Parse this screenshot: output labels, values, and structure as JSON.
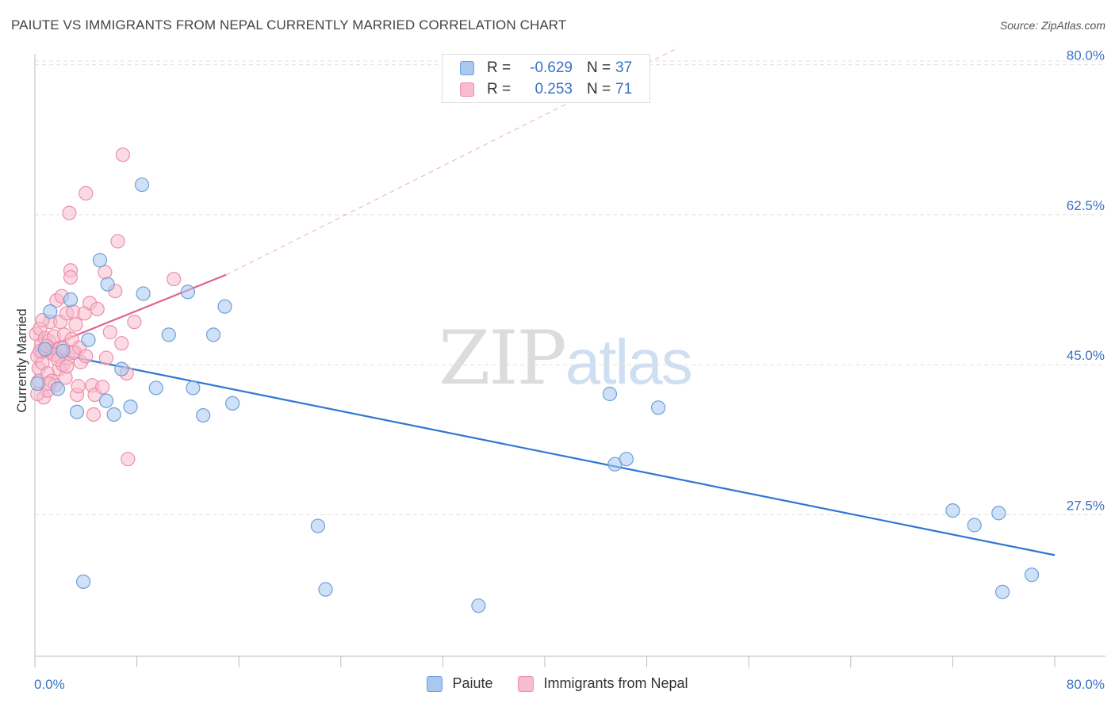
{
  "header": {
    "title": "PAIUTE VS IMMIGRANTS FROM NEPAL CURRENTLY MARRIED CORRELATION CHART",
    "source": "Source: ZipAtlas.com"
  },
  "watermark": {
    "zip": "ZIP",
    "atlas": "atlas"
  },
  "legend_top": {
    "rows": [
      {
        "r_label": "R =",
        "r_value": "-0.629",
        "n_label": "N =",
        "n_value": "37"
      },
      {
        "r_label": "R =",
        "r_value": "0.253",
        "n_label": "N =",
        "n_value": "71"
      }
    ]
  },
  "legend_bottom": {
    "items": [
      {
        "label": "Paiute"
      },
      {
        "label": "Immigrants from Nepal"
      }
    ]
  },
  "colors": {
    "paiute_fill": "#a8c8f0",
    "paiute_stroke": "#6f9fd8",
    "paiute_line": "#2f76d2",
    "nepal_fill": "#f7bccd",
    "nepal_stroke": "#ec8fab",
    "nepal_line": "#e3628d",
    "grid": "#e0e0e0",
    "axis_label": "#3a72c4"
  },
  "chart_data": {
    "type": "scatter",
    "title": "PAIUTE VS IMMIGRANTS FROM NEPAL CURRENTLY MARRIED CORRELATION CHART",
    "xlabel": "",
    "ylabel": "Currently Married",
    "xlim": [
      0,
      80
    ],
    "ylim": [
      11,
      82
    ],
    "x_tick_labels": [
      "0.0%",
      "80.0%"
    ],
    "y_ticks": [
      27.5,
      45.0,
      62.5,
      80.0
    ],
    "y_tick_labels": [
      "27.5%",
      "45.0%",
      "62.5%",
      "80.0%"
    ],
    "series": [
      {
        "name": "Paiute",
        "r": -0.629,
        "n": 37,
        "points": [
          [
            0.2,
            42.8
          ],
          [
            1.2,
            51.2
          ],
          [
            1.8,
            42.2
          ],
          [
            2.2,
            46.6
          ],
          [
            2.8,
            52.6
          ],
          [
            3.3,
            39.5
          ],
          [
            3.8,
            19.7
          ],
          [
            4.2,
            47.9
          ],
          [
            5.1,
            57.2
          ],
          [
            5.6,
            40.8
          ],
          [
            5.7,
            54.4
          ],
          [
            6.2,
            39.2
          ],
          [
            6.8,
            44.5
          ],
          [
            7.5,
            40.1
          ],
          [
            8.4,
            66.0
          ],
          [
            8.5,
            53.3
          ],
          [
            9.5,
            42.3
          ],
          [
            10.5,
            48.5
          ],
          [
            12.0,
            53.5
          ],
          [
            12.4,
            42.3
          ],
          [
            13.2,
            39.1
          ],
          [
            14.0,
            48.5
          ],
          [
            14.9,
            51.8
          ],
          [
            15.5,
            40.5
          ],
          [
            22.2,
            26.2
          ],
          [
            22.8,
            18.8
          ],
          [
            34.8,
            16.9
          ],
          [
            45.1,
            41.6
          ],
          [
            45.5,
            33.4
          ],
          [
            46.4,
            34.0
          ],
          [
            48.9,
            40.0
          ],
          [
            72.0,
            28.0
          ],
          [
            73.7,
            26.3
          ],
          [
            75.6,
            27.7
          ],
          [
            75.9,
            18.5
          ],
          [
            78.2,
            20.5
          ],
          [
            0.8,
            46.8
          ]
        ]
      },
      {
        "name": "Immigrants from Nepal",
        "r": 0.253,
        "n": 71,
        "points": [
          [
            0.1,
            48.6
          ],
          [
            0.2,
            46.0
          ],
          [
            0.3,
            44.6
          ],
          [
            0.3,
            43.1
          ],
          [
            0.4,
            49.2
          ],
          [
            0.5,
            47.4
          ],
          [
            0.6,
            46.5
          ],
          [
            0.6,
            45.2
          ],
          [
            0.7,
            41.2
          ],
          [
            0.8,
            48.1
          ],
          [
            0.9,
            46.8
          ],
          [
            1.0,
            44.0
          ],
          [
            1.0,
            42.0
          ],
          [
            1.1,
            47.8
          ],
          [
            1.2,
            50.0
          ],
          [
            1.3,
            43.1
          ],
          [
            1.4,
            46.5
          ],
          [
            1.5,
            48.3
          ],
          [
            1.6,
            42.6
          ],
          [
            1.7,
            52.5
          ],
          [
            1.8,
            46.0
          ],
          [
            1.9,
            44.5
          ],
          [
            2.0,
            47.0
          ],
          [
            2.0,
            50.0
          ],
          [
            2.1,
            53.0
          ],
          [
            2.2,
            45.0
          ],
          [
            2.3,
            48.5
          ],
          [
            2.4,
            43.5
          ],
          [
            2.5,
            51.0
          ],
          [
            2.6,
            45.8
          ],
          [
            2.7,
            62.7
          ],
          [
            2.8,
            56.0
          ],
          [
            2.8,
            55.2
          ],
          [
            2.9,
            48.0
          ],
          [
            3.0,
            51.2
          ],
          [
            3.1,
            46.5
          ],
          [
            3.2,
            49.7
          ],
          [
            3.3,
            41.5
          ],
          [
            3.4,
            42.5
          ],
          [
            3.6,
            45.3
          ],
          [
            3.9,
            51.0
          ],
          [
            4.0,
            65.0
          ],
          [
            4.3,
            52.2
          ],
          [
            4.5,
            42.6
          ],
          [
            4.6,
            39.2
          ],
          [
            4.7,
            41.5
          ],
          [
            4.9,
            51.5
          ],
          [
            5.3,
            42.4
          ],
          [
            5.5,
            55.8
          ],
          [
            5.6,
            45.8
          ],
          [
            5.9,
            48.8
          ],
          [
            6.3,
            53.6
          ],
          [
            6.5,
            59.4
          ],
          [
            6.8,
            47.5
          ],
          [
            6.9,
            69.5
          ],
          [
            7.2,
            44.0
          ],
          [
            7.3,
            34.0
          ],
          [
            7.8,
            50.0
          ],
          [
            10.9,
            55.0
          ],
          [
            0.4,
            46.6
          ],
          [
            0.9,
            47.2
          ],
          [
            1.5,
            46.2
          ],
          [
            2.2,
            46.9
          ],
          [
            3.0,
            46.4
          ],
          [
            0.6,
            50.2
          ],
          [
            1.8,
            45.6
          ],
          [
            2.5,
            44.8
          ],
          [
            1.1,
            42.8
          ],
          [
            3.5,
            47.0
          ],
          [
            0.2,
            41.6
          ],
          [
            4.0,
            46.0
          ]
        ]
      }
    ],
    "trendlines": [
      {
        "series": "Paiute",
        "x": [
          0,
          80
        ],
        "y": [
          46.8,
          22.8
        ],
        "style": "solid"
      },
      {
        "series": "Immigrants from Nepal",
        "x": [
          0,
          15
        ],
        "y": [
          46.5,
          55.5
        ],
        "style": "solid"
      },
      {
        "series": "Immigrants from Nepal",
        "x": [
          15,
          50.5
        ],
        "y": [
          55.5,
          82.0
        ],
        "style": "dashed"
      }
    ],
    "grid": true,
    "legend_position": "top-center"
  }
}
